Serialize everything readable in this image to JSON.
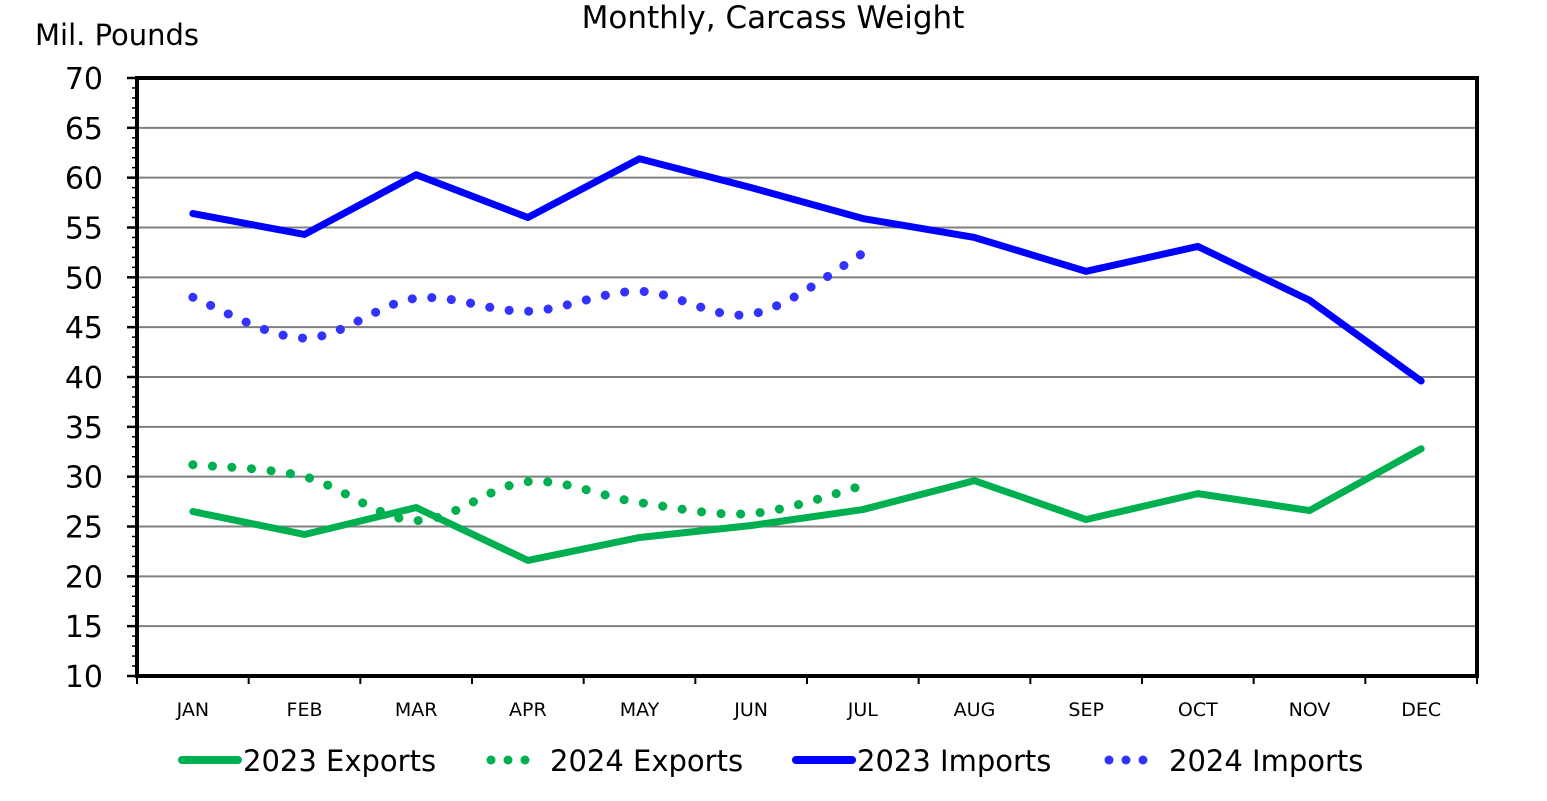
{
  "chart_data": {
    "type": "line",
    "title": "Monthly, Carcass Weight",
    "xlabel": "",
    "ylabel": "Mil. Pounds",
    "ylim": [
      10,
      70
    ],
    "y_ticks": [
      "10",
      "15",
      "20",
      "25",
      "30",
      "35",
      "40",
      "45",
      "50",
      "55",
      "60",
      "65",
      "70"
    ],
    "grid": true,
    "legend_position": "bottom",
    "categories": [
      "JAN",
      "FEB",
      "MAR",
      "APR",
      "MAY",
      "JUN",
      "JUL",
      "AUG",
      "SEP",
      "OCT",
      "NOV",
      "DEC"
    ],
    "series": [
      {
        "name": "2023 Exports",
        "color": "#00b050",
        "style": "solid",
        "values": [
          26.5,
          24.2,
          26.9,
          21.6,
          23.9,
          25.1,
          26.7,
          29.6,
          25.7,
          28.3,
          26.6,
          32.8
        ]
      },
      {
        "name": "2024 Exports",
        "color": "#00b050",
        "style": "dotted",
        "values": [
          31.2,
          30.0,
          25.6,
          29.5,
          27.4,
          26.3,
          29.1
        ]
      },
      {
        "name": "2023 Imports",
        "color": "#0000ff",
        "style": "solid",
        "values": [
          56.4,
          54.3,
          60.3,
          56.0,
          61.9,
          59.0,
          55.9,
          54.0,
          50.6,
          53.1,
          47.7,
          39.6
        ]
      },
      {
        "name": "2024 Imports",
        "color": "#3333ff",
        "style": "dotted",
        "values": [
          48.0,
          43.9,
          47.9,
          46.6,
          48.6,
          46.3,
          52.4
        ]
      }
    ]
  }
}
